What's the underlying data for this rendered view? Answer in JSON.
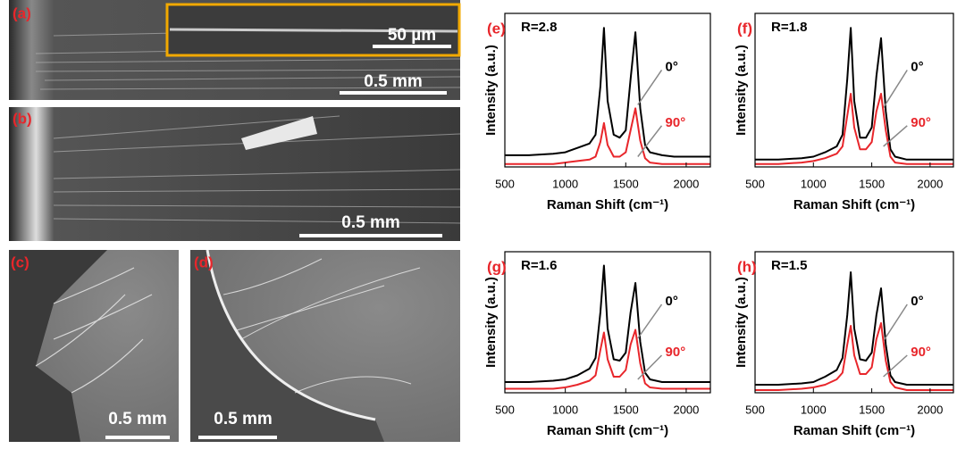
{
  "images": [
    {
      "label": "(a)",
      "inset_scale": "50 µm",
      "scale": "0.5 mm"
    },
    {
      "label": "(b)",
      "scale": "0.5 mm"
    },
    {
      "label": "(c)",
      "scale": "0.5 mm"
    },
    {
      "label": "(d)",
      "scale": "0.5 mm"
    }
  ],
  "chart_data": [
    {
      "type": "line",
      "panel_label": "(e)",
      "annotation": "R=2.8",
      "xlabel": "Raman Shift (cm⁻¹)",
      "ylabel": "Intensity (a.u.)",
      "x": [
        500,
        700,
        900,
        1000,
        1100,
        1200,
        1250,
        1290,
        1320,
        1350,
        1400,
        1450,
        1500,
        1540,
        1580,
        1620,
        1660,
        1700,
        1800,
        1900,
        2000,
        2100,
        2200
      ],
      "xlim": [
        500,
        2200
      ],
      "xticks": [
        500,
        1000,
        1500,
        2000
      ],
      "ylim": [
        0,
        1
      ],
      "series": [
        {
          "name": "0°",
          "color": "#000000",
          "values": [
            0.08,
            0.08,
            0.09,
            0.1,
            0.13,
            0.16,
            0.22,
            0.55,
            0.95,
            0.45,
            0.22,
            0.2,
            0.25,
            0.6,
            0.92,
            0.4,
            0.15,
            0.1,
            0.08,
            0.07,
            0.07,
            0.07,
            0.07
          ]
        },
        {
          "name": "90°",
          "color": "#e8262b",
          "values": [
            0.02,
            0.02,
            0.02,
            0.03,
            0.04,
            0.05,
            0.07,
            0.17,
            0.3,
            0.15,
            0.07,
            0.07,
            0.1,
            0.25,
            0.4,
            0.18,
            0.06,
            0.03,
            0.02,
            0.02,
            0.02,
            0.02,
            0.02
          ]
        }
      ]
    },
    {
      "type": "line",
      "panel_label": "(f)",
      "annotation": "R=1.8",
      "xlabel": "Raman Shift (cm⁻¹)",
      "ylabel": "Intensity (a.u.)",
      "x": [
        500,
        700,
        900,
        1000,
        1100,
        1200,
        1250,
        1290,
        1320,
        1350,
        1400,
        1450,
        1500,
        1540,
        1580,
        1620,
        1660,
        1700,
        1800,
        1900,
        2000,
        2100,
        2200
      ],
      "xlim": [
        500,
        2200
      ],
      "xticks": [
        500,
        1000,
        1500,
        2000
      ],
      "ylim": [
        0,
        1
      ],
      "series": [
        {
          "name": "0°",
          "color": "#000000",
          "values": [
            0.05,
            0.05,
            0.06,
            0.07,
            0.1,
            0.14,
            0.22,
            0.6,
            0.95,
            0.45,
            0.2,
            0.2,
            0.27,
            0.62,
            0.88,
            0.38,
            0.12,
            0.07,
            0.05,
            0.05,
            0.05,
            0.05,
            0.05
          ]
        },
        {
          "name": "90°",
          "color": "#e8262b",
          "values": [
            0.02,
            0.02,
            0.03,
            0.04,
            0.06,
            0.09,
            0.14,
            0.35,
            0.5,
            0.27,
            0.12,
            0.12,
            0.17,
            0.38,
            0.5,
            0.25,
            0.07,
            0.03,
            0.02,
            0.02,
            0.02,
            0.02,
            0.02
          ]
        }
      ]
    },
    {
      "type": "line",
      "panel_label": "(g)",
      "annotation": "R=1.6",
      "xlabel": "Raman Shift (cm⁻¹)",
      "ylabel": "Intensity (a.u.)",
      "x": [
        500,
        700,
        900,
        1000,
        1100,
        1200,
        1250,
        1290,
        1320,
        1350,
        1400,
        1450,
        1500,
        1540,
        1580,
        1620,
        1660,
        1700,
        1800,
        1900,
        2000,
        2100,
        2200
      ],
      "xlim": [
        500,
        2200
      ],
      "xticks": [
        500,
        1000,
        1500,
        2000
      ],
      "ylim": [
        0,
        1
      ],
      "series": [
        {
          "name": "0°",
          "color": "#000000",
          "values": [
            0.08,
            0.08,
            0.09,
            0.1,
            0.13,
            0.18,
            0.26,
            0.6,
            0.95,
            0.48,
            0.25,
            0.24,
            0.3,
            0.6,
            0.82,
            0.38,
            0.15,
            0.1,
            0.08,
            0.08,
            0.08,
            0.08,
            0.08
          ]
        },
        {
          "name": "90°",
          "color": "#e8262b",
          "values": [
            0.03,
            0.03,
            0.03,
            0.04,
            0.06,
            0.09,
            0.13,
            0.32,
            0.45,
            0.25,
            0.12,
            0.12,
            0.17,
            0.36,
            0.47,
            0.22,
            0.07,
            0.04,
            0.03,
            0.03,
            0.03,
            0.03,
            0.03
          ]
        }
      ]
    },
    {
      "type": "line",
      "panel_label": "(h)",
      "annotation": "R=1.5",
      "xlabel": "Raman Shift (cm⁻¹)",
      "ylabel": "Intensity (a.u.)",
      "x": [
        500,
        700,
        900,
        1000,
        1100,
        1200,
        1250,
        1290,
        1320,
        1350,
        1400,
        1450,
        1500,
        1540,
        1580,
        1620,
        1660,
        1700,
        1800,
        1900,
        2000,
        2100,
        2200
      ],
      "xlim": [
        500,
        2200
      ],
      "xticks": [
        500,
        1000,
        1500,
        2000
      ],
      "ylim": [
        0,
        1
      ],
      "series": [
        {
          "name": "0°",
          "color": "#000000",
          "values": [
            0.06,
            0.06,
            0.07,
            0.08,
            0.12,
            0.17,
            0.26,
            0.58,
            0.9,
            0.48,
            0.25,
            0.24,
            0.3,
            0.58,
            0.78,
            0.36,
            0.13,
            0.08,
            0.06,
            0.06,
            0.06,
            0.06,
            0.06
          ]
        },
        {
          "name": "90°",
          "color": "#e8262b",
          "values": [
            0.02,
            0.02,
            0.03,
            0.04,
            0.06,
            0.1,
            0.15,
            0.36,
            0.5,
            0.28,
            0.14,
            0.14,
            0.19,
            0.4,
            0.52,
            0.24,
            0.08,
            0.04,
            0.02,
            0.02,
            0.02,
            0.02,
            0.02
          ]
        }
      ]
    }
  ]
}
